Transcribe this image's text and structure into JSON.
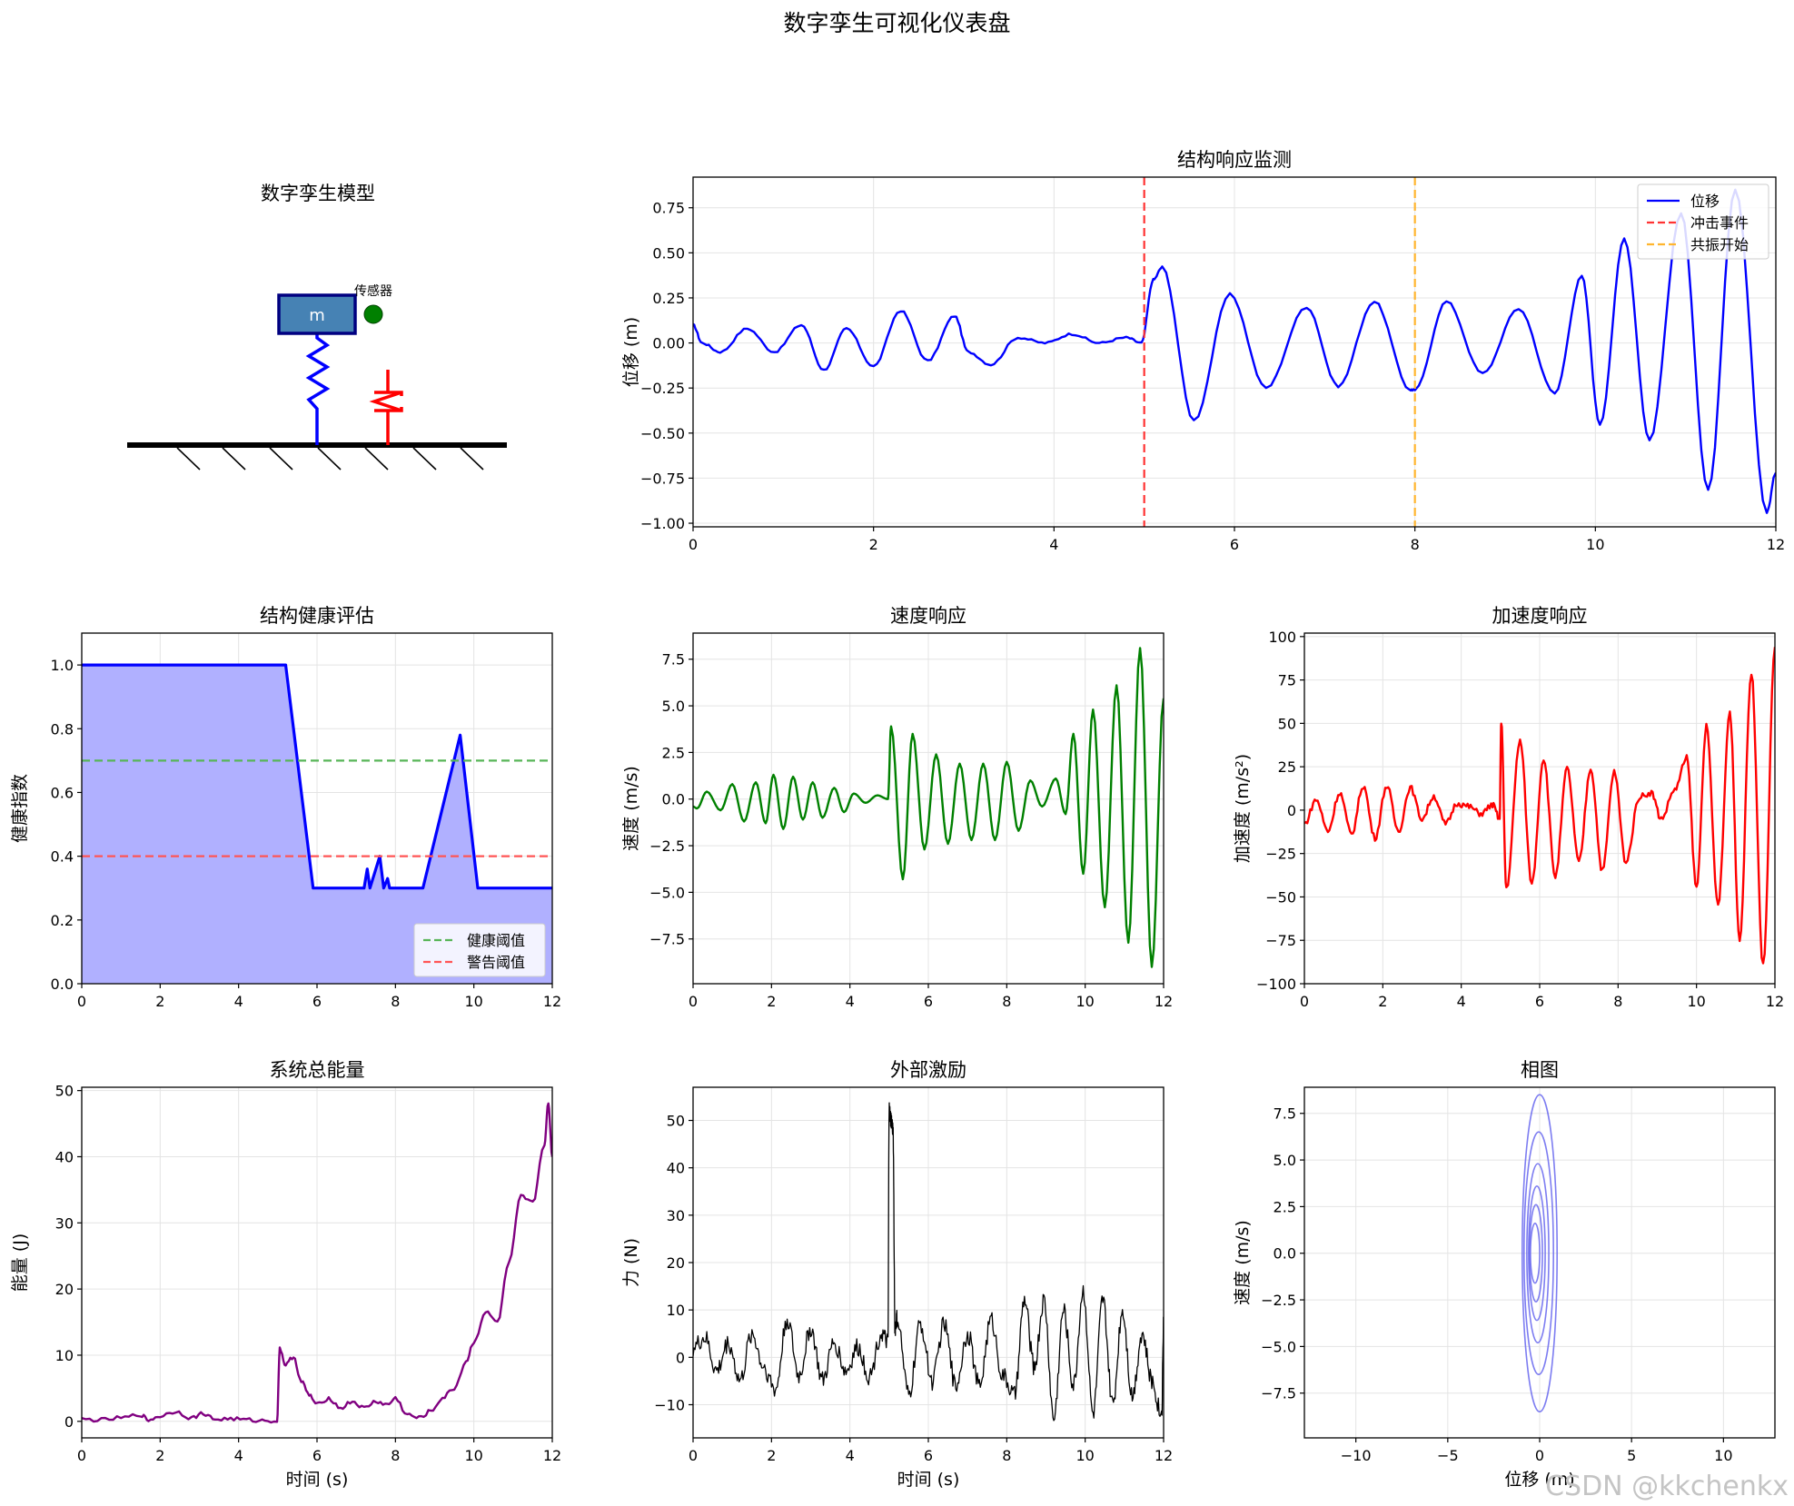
{
  "title": "数字孪生可视化仪表盘",
  "watermark": "CSDN @kkchenkx",
  "model_panel": {
    "title": "数字孪生模型",
    "mass_label": "m",
    "sensor_label": "传感器",
    "colors": {
      "mass_fill": "#4682b4",
      "mass_edge": "#000080",
      "spring": "#0000ff",
      "damper": "#ff0000",
      "sensor": "#008000",
      "ground": "#000000"
    }
  },
  "chart_data": [
    {
      "id": "response",
      "type": "line",
      "title": "结构响应监测",
      "xlabel": "",
      "ylabel": "位移 (m)",
      "xlim": [
        0,
        12
      ],
      "ylim": [
        -1.02,
        0.92
      ],
      "xticks": [
        0,
        2,
        4,
        6,
        8,
        10,
        12
      ],
      "yticks": [
        -1.0,
        -0.75,
        -0.5,
        -0.25,
        0.0,
        0.25,
        0.5,
        0.75
      ],
      "ytick_labels": [
        "−1.00",
        "−0.75",
        "−0.50",
        "−0.25",
        "0.00",
        "0.25",
        "0.50",
        "0.75"
      ],
      "grid": true,
      "legend": "upper right",
      "series": [
        {
          "name": "位移",
          "color": "#0000ff",
          "x": [
            0,
            0.1,
            0.3,
            0.6,
            0.9,
            1.2,
            1.45,
            1.7,
            2.0,
            2.3,
            2.6,
            2.9,
            3.05,
            3.3,
            3.6,
            3.9,
            4.2,
            4.5,
            4.8,
            4.97,
            5.1,
            5.2,
            5.55,
            5.95,
            6.35,
            6.8,
            7.15,
            7.55,
            7.95,
            8.0,
            8.35,
            8.75,
            9.15,
            9.55,
            9.85,
            10.05,
            10.32,
            10.6,
            10.95,
            11.25,
            11.55,
            11.9,
            12.0
          ],
          "y": [
            0.1,
            0.0,
            -0.05,
            0.08,
            -0.05,
            0.1,
            -0.15,
            0.08,
            -0.13,
            0.18,
            -0.1,
            0.15,
            -0.05,
            -0.12,
            0.03,
            0.0,
            0.05,
            0.0,
            0.03,
            0.0,
            0.35,
            0.42,
            -0.43,
            0.27,
            -0.25,
            0.2,
            -0.24,
            0.23,
            -0.26,
            -0.26,
            0.23,
            -0.17,
            0.19,
            -0.28,
            0.37,
            -0.45,
            0.58,
            -0.54,
            0.72,
            -0.82,
            0.85,
            -0.94,
            -0.72
          ]
        },
        {
          "name": "冲击事件",
          "type": "vline",
          "x": 5,
          "color": "#ff3333",
          "dash": true
        },
        {
          "name": "共振开始",
          "type": "vline",
          "x": 8,
          "color": "#ffb52e",
          "dash": true
        }
      ]
    },
    {
      "id": "health",
      "type": "area",
      "title": "结构健康评估",
      "xlabel": "",
      "ylabel": "健康指数",
      "xlim": [
        0,
        12
      ],
      "ylim": [
        0,
        1.1
      ],
      "xticks": [
        0,
        2,
        4,
        6,
        8,
        10,
        12
      ],
      "yticks": [
        0,
        0.2,
        0.4,
        0.6,
        0.8,
        1.0
      ],
      "ytick_labels": [
        "0.0",
        "0.2",
        "0.4",
        "0.6",
        "0.8",
        "1.0"
      ],
      "grid": true,
      "legend": "lower right",
      "series": [
        {
          "name": "",
          "color": "#0000ff",
          "fill": "#b0b0ff",
          "x": [
            0,
            5.2,
            5.9,
            7.2,
            7.28,
            7.35,
            7.6,
            7.7,
            7.8,
            7.85,
            7.9,
            8.7,
            9.65,
            10.1,
            12.0
          ],
          "y": [
            1.0,
            1.0,
            0.3,
            0.3,
            0.36,
            0.3,
            0.4,
            0.3,
            0.33,
            0.3,
            0.3,
            0.3,
            0.78,
            0.3,
            0.3
          ]
        },
        {
          "name": "健康阈值",
          "type": "hline",
          "y": 0.7,
          "color": "#57b557",
          "dash": true
        },
        {
          "name": "警告阈值",
          "type": "hline",
          "y": 0.4,
          "color": "#ff5555",
          "dash": true
        }
      ]
    },
    {
      "id": "velocity",
      "type": "line",
      "title": "速度响应",
      "xlabel": "",
      "ylabel": "速度 (m/s)",
      "xlim": [
        0,
        12
      ],
      "ylim": [
        -9.9,
        8.9
      ],
      "xticks": [
        0,
        2,
        4,
        6,
        8,
        10,
        12
      ],
      "yticks": [
        -7.5,
        -5.0,
        -2.5,
        0.0,
        2.5,
        5.0,
        7.5
      ],
      "ytick_labels": [
        "−7.5",
        "−5.0",
        "−2.5",
        "0.0",
        "2.5",
        "5.0",
        "7.5"
      ],
      "grid": true,
      "series": [
        {
          "name": "",
          "color": "#008000",
          "x": [
            0,
            0.1,
            0.35,
            0.7,
            1.0,
            1.3,
            1.6,
            1.85,
            2.05,
            2.3,
            2.55,
            2.8,
            3.05,
            3.3,
            3.6,
            3.85,
            4.1,
            4.4,
            4.7,
            4.97,
            5.05,
            5.35,
            5.6,
            5.9,
            6.2,
            6.5,
            6.8,
            7.1,
            7.4,
            7.7,
            8.0,
            8.3,
            8.6,
            8.9,
            9.25,
            9.5,
            9.7,
            9.95,
            10.2,
            10.5,
            10.8,
            11.1,
            11.4,
            11.7,
            12.0
          ],
          "y": [
            -0.4,
            -0.5,
            0.4,
            -0.6,
            0.8,
            -1.2,
            0.9,
            -1.3,
            1.3,
            -1.6,
            1.2,
            -1.1,
            0.9,
            -1.0,
            0.6,
            -0.7,
            0.3,
            -0.2,
            0.2,
            0.0,
            3.9,
            -4.3,
            3.5,
            -2.7,
            2.4,
            -2.4,
            1.9,
            -2.2,
            1.9,
            -2.2,
            2.0,
            -1.7,
            1.0,
            -0.4,
            1.1,
            -0.8,
            3.5,
            -4.0,
            4.8,
            -5.8,
            6.1,
            -7.7,
            8.1,
            -9.0,
            5.4
          ]
        }
      ]
    },
    {
      "id": "acceleration",
      "type": "line",
      "title": "加速度响应",
      "xlabel": "",
      "ylabel": "加速度 (m/s²)",
      "xlim": [
        0,
        12
      ],
      "ylim": [
        -100,
        102
      ],
      "xticks": [
        0,
        2,
        4,
        6,
        8,
        10,
        12
      ],
      "yticks": [
        -100,
        -75,
        -50,
        -25,
        0,
        25,
        50,
        75,
        100
      ],
      "ytick_labels": [
        "−100",
        "−75",
        "−50",
        "−25",
        "0",
        "25",
        "50",
        "75",
        "100"
      ],
      "grid": true,
      "series": [
        {
          "name": "",
          "color": "#ff0000",
          "x": [
            0,
            0.3,
            0.6,
            0.9,
            1.2,
            1.5,
            1.8,
            2.1,
            2.4,
            2.7,
            3.0,
            3.3,
            3.6,
            3.9,
            4.2,
            4.5,
            4.8,
            4.98,
            5.02,
            5.15,
            5.5,
            5.8,
            6.1,
            6.4,
            6.7,
            7.0,
            7.3,
            7.6,
            7.9,
            8.2,
            8.55,
            8.85,
            9.1,
            9.45,
            9.75,
            10.0,
            10.25,
            10.55,
            10.85,
            11.1,
            11.4,
            11.7,
            12.0
          ],
          "y": [
            -8,
            6,
            -12,
            10,
            -14,
            14,
            -16,
            14,
            -12,
            13,
            -5,
            8,
            -8,
            4,
            2,
            -2,
            3,
            -5,
            50,
            -45,
            40,
            -42,
            30,
            -38,
            24,
            -30,
            24,
            -35,
            22,
            -30,
            8,
            10,
            -5,
            12,
            30,
            -45,
            48,
            -55,
            56,
            -75,
            79,
            -90,
            94
          ]
        }
      ]
    },
    {
      "id": "energy",
      "type": "line",
      "title": "系统总能量",
      "xlabel": "时间 (s)",
      "ylabel": "能量 (J)",
      "xlim": [
        0,
        12
      ],
      "ylim": [
        -2.5,
        50.5
      ],
      "xticks": [
        0,
        2,
        4,
        6,
        8,
        10,
        12
      ],
      "yticks": [
        0,
        10,
        20,
        30,
        40,
        50
      ],
      "ytick_labels": [
        "0",
        "10",
        "20",
        "30",
        "40",
        "50"
      ],
      "grid": true,
      "series": [
        {
          "name": "",
          "color": "#800080",
          "x": [
            0,
            0.5,
            1.0,
            1.5,
            1.7,
            2.0,
            2.4,
            2.8,
            3.1,
            3.4,
            3.8,
            4.2,
            4.6,
            4.98,
            5.05,
            5.2,
            5.4,
            5.6,
            5.8,
            6.0,
            6.3,
            6.6,
            6.9,
            7.2,
            7.5,
            7.8,
            8.0,
            8.3,
            8.6,
            8.9,
            9.2,
            9.5,
            9.8,
            10.0,
            10.3,
            10.6,
            10.9,
            11.2,
            11.5,
            11.8,
            11.9,
            12.0
          ],
          "y": [
            0.3,
            0.2,
            0.5,
            1.0,
            0.2,
            0.8,
            1.5,
            0.5,
            1.2,
            0.3,
            0.4,
            0.2,
            0.1,
            0.1,
            11.0,
            8.5,
            9.8,
            6.0,
            4.0,
            2.5,
            3.5,
            2.0,
            3.0,
            2.0,
            3.0,
            2.5,
            3.5,
            1.0,
            0.5,
            1.5,
            3.5,
            5.0,
            9.0,
            12.0,
            16.5,
            15.0,
            24.0,
            34.0,
            33.0,
            42.0,
            48.0,
            40.0
          ]
        }
      ]
    },
    {
      "id": "force",
      "type": "line",
      "title": "外部激励",
      "xlabel": "时间 (s)",
      "ylabel": "力 (N)",
      "xlim": [
        0,
        12
      ],
      "ylim": [
        -17,
        57
      ],
      "xticks": [
        0,
        2,
        4,
        6,
        8,
        10,
        12
      ],
      "yticks": [
        -10,
        0,
        10,
        20,
        30,
        40,
        50
      ],
      "ytick_labels": [
        "−10",
        "0",
        "10",
        "20",
        "30",
        "40",
        "50"
      ],
      "grid": true,
      "series": [
        {
          "name": "",
          "color": "#000000",
          "x": [
            0,
            0.3,
            0.6,
            0.9,
            1.2,
            1.5,
            1.8,
            2.1,
            2.4,
            2.7,
            3.0,
            3.3,
            3.6,
            3.9,
            4.2,
            4.5,
            4.8,
            4.97,
            5.0,
            5.05,
            5.1,
            5.15,
            5.2,
            5.5,
            5.8,
            6.1,
            6.4,
            6.7,
            7.0,
            7.3,
            7.6,
            7.9,
            8.2,
            8.45,
            8.7,
            8.95,
            9.2,
            9.45,
            9.7,
            9.95,
            10.2,
            10.45,
            10.7,
            10.95,
            11.2,
            11.45,
            11.7,
            11.95,
            12.0
          ],
          "y": [
            2,
            4,
            -3,
            3,
            -5,
            5,
            -2,
            -7,
            8,
            -4,
            6,
            -5,
            3,
            -3,
            2,
            -4,
            5,
            3,
            52,
            50,
            48,
            6,
            8,
            -8,
            7,
            -5,
            7,
            -6,
            5,
            -6,
            8,
            -4,
            -8,
            12,
            -2,
            12,
            -13,
            10,
            -6,
            14,
            -12,
            12,
            -10,
            10,
            -8,
            5,
            -5,
            -12,
            7
          ]
        }
      ]
    },
    {
      "id": "phase",
      "type": "line",
      "title": "相图",
      "xlabel": "位移 (m)",
      "ylabel": "速度 (m/s)",
      "xlim": [
        -12.8,
        12.8
      ],
      "ylim": [
        -9.9,
        8.9
      ],
      "xticks": [
        -10,
        -5,
        0,
        5,
        10
      ],
      "xtick_labels": [
        "−10",
        "−5",
        "0",
        "5",
        "10"
      ],
      "yticks": [
        -7.5,
        -5.0,
        -2.5,
        0.0,
        2.5,
        5.0,
        7.5
      ],
      "ytick_labels": [
        "−7.5",
        "−5.0",
        "−2.5",
        "0.0",
        "2.5",
        "5.0",
        "7.5"
      ],
      "grid": true,
      "series": [
        {
          "name": "",
          "color": "#6666ee",
          "orbits": [
            [
              0.95,
              8.5
            ],
            [
              0.8,
              6.5
            ],
            [
              0.6,
              4.8
            ],
            [
              0.45,
              3.6
            ],
            [
              0.35,
              2.6
            ],
            [
              0.25,
              1.6
            ]
          ]
        }
      ]
    }
  ]
}
